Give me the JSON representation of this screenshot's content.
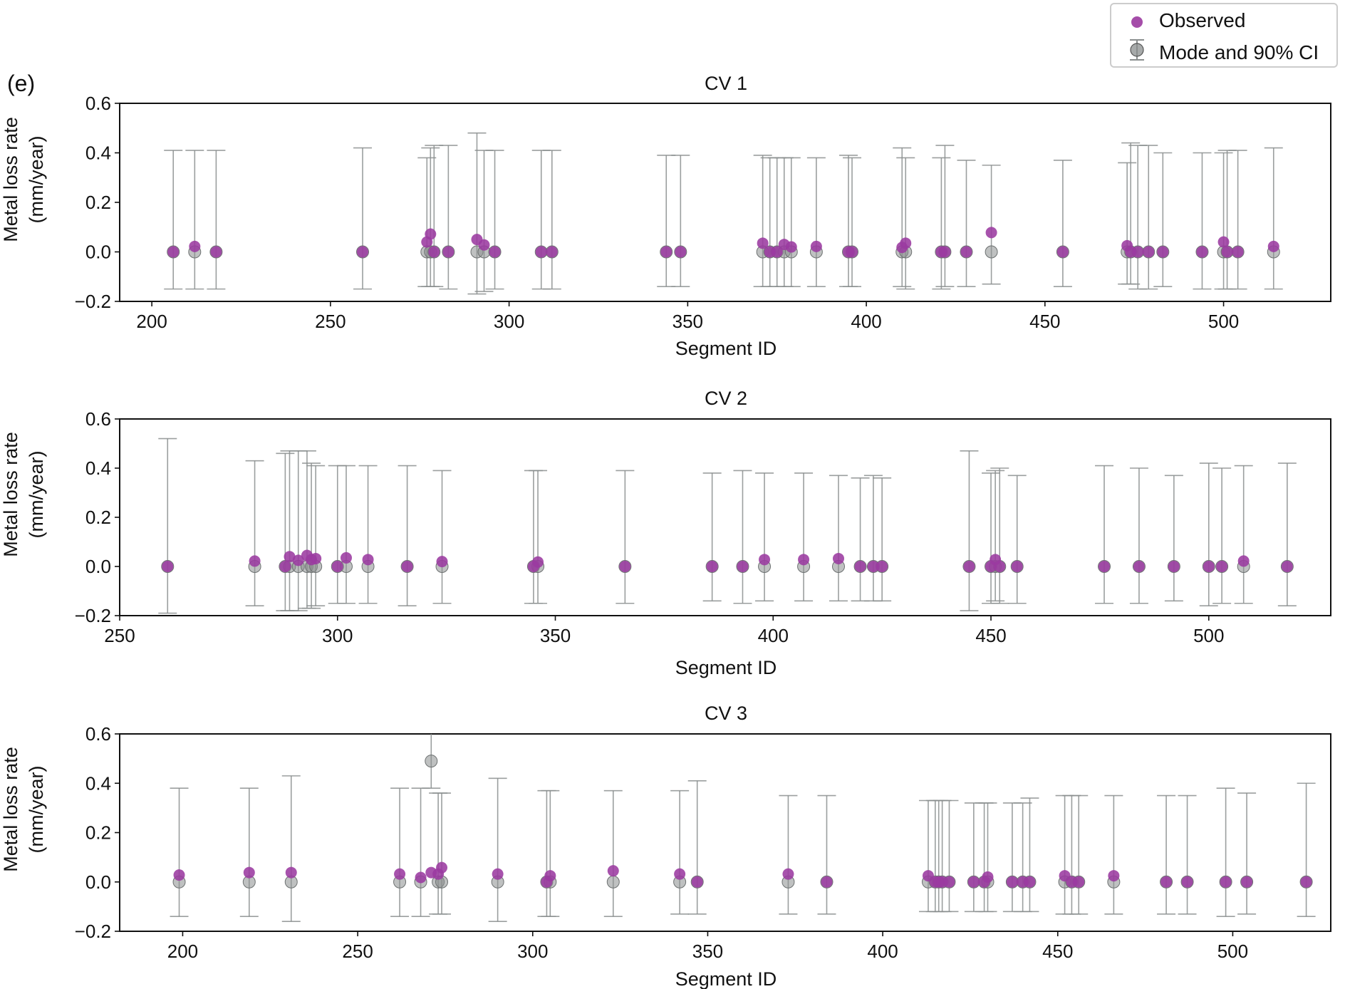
{
  "figure_label": "(e)",
  "legend": {
    "observed_label": "Observed",
    "mode_label": "Mode and 90% CI",
    "observed_color": "#9b3aa0",
    "mode_color": "#8a8e8e"
  },
  "chart_data": [
    {
      "type": "scatter",
      "title": "CV 1",
      "xlabel": "Segment ID",
      "ylabel_line1": "Metal loss rate",
      "ylabel_line2": "(mm/year)",
      "xlim": [
        191,
        530
      ],
      "ylim": [
        -0.2,
        0.6
      ],
      "xticks": [
        200,
        250,
        300,
        350,
        400,
        450,
        500
      ],
      "yticks": [
        -0.2,
        0.0,
        0.2,
        0.4,
        0.6
      ],
      "ytick_labels": [
        "−0.2",
        "0.0",
        "0.2",
        "0.4",
        "0.6"
      ],
      "series": [
        {
          "name": "Mode and 90% CI",
          "x": [
            206,
            212,
            218,
            259,
            277,
            278,
            279,
            283,
            291,
            293,
            296,
            309,
            312,
            344,
            348,
            371,
            373,
            375,
            377,
            379,
            386,
            395,
            396,
            410,
            411,
            421,
            422,
            428,
            435,
            455,
            473,
            474,
            476,
            479,
            483,
            494,
            500,
            501,
            504,
            514
          ],
          "y": [
            0,
            0,
            0,
            0,
            0,
            0,
            0,
            0,
            0,
            0,
            0,
            0,
            0,
            0,
            0,
            0,
            0,
            0,
            0,
            0,
            0,
            0,
            0,
            0,
            0,
            0,
            0,
            0,
            0,
            0,
            0,
            0,
            0,
            0,
            0,
            0,
            0,
            0,
            0,
            0
          ],
          "lower": [
            -0.15,
            -0.15,
            -0.15,
            -0.15,
            -0.14,
            -0.14,
            -0.14,
            -0.15,
            -0.17,
            -0.16,
            -0.15,
            -0.15,
            -0.15,
            -0.14,
            -0.14,
            -0.14,
            -0.14,
            -0.14,
            -0.14,
            -0.14,
            -0.14,
            -0.14,
            -0.14,
            -0.14,
            -0.15,
            -0.15,
            -0.14,
            -0.14,
            -0.13,
            -0.14,
            -0.13,
            -0.13,
            -0.15,
            -0.15,
            -0.14,
            -0.15,
            -0.15,
            -0.15,
            -0.15,
            -0.15
          ],
          "upper": [
            0.41,
            0.41,
            0.41,
            0.42,
            0.38,
            0.42,
            0.43,
            0.43,
            0.48,
            0.41,
            0.41,
            0.41,
            0.41,
            0.39,
            0.39,
            0.39,
            0.38,
            0.38,
            0.38,
            0.38,
            0.38,
            0.39,
            0.38,
            0.42,
            0.38,
            0.38,
            0.43,
            0.37,
            0.35,
            0.37,
            0.36,
            0.44,
            0.43,
            0.43,
            0.4,
            0.4,
            0.4,
            0.41,
            0.41,
            0.42
          ]
        },
        {
          "name": "Observed",
          "x": [
            206,
            212,
            218,
            259,
            277,
            278,
            279,
            283,
            291,
            293,
            296,
            309,
            312,
            344,
            348,
            371,
            373,
            375,
            377,
            379,
            386,
            395,
            396,
            410,
            411,
            421,
            422,
            428,
            435,
            455,
            473,
            474,
            476,
            479,
            483,
            494,
            500,
            501,
            504,
            514
          ],
          "y": [
            0.0,
            0.022,
            0.0,
            0.0,
            0.04,
            0.072,
            0.0,
            0.0,
            0.05,
            0.028,
            0.0,
            0.0,
            0.0,
            0.0,
            0.0,
            0.035,
            0.0,
            0.0,
            0.03,
            0.02,
            0.022,
            0.0,
            0.0,
            0.018,
            0.035,
            0.0,
            0.0,
            0.0,
            0.078,
            0.0,
            0.025,
            0.0,
            0.0,
            0.0,
            0.0,
            0.0,
            0.04,
            0.0,
            0.0,
            0.022
          ]
        }
      ]
    },
    {
      "type": "scatter",
      "title": "CV 2",
      "xlabel": "Segment ID",
      "ylabel_line1": "Metal loss rate",
      "ylabel_line2": "(mm/year)",
      "xlim": [
        250,
        528
      ],
      "ylim": [
        -0.2,
        0.6
      ],
      "xticks": [
        250,
        300,
        350,
        400,
        450,
        500
      ],
      "yticks": [
        -0.2,
        0.0,
        0.2,
        0.4,
        0.6
      ],
      "ytick_labels": [
        "−0.2",
        "0.0",
        "0.2",
        "0.4",
        "0.6"
      ],
      "series": [
        {
          "name": "Mode and 90% CI",
          "x": [
            261,
            281,
            288,
            289,
            291,
            293,
            294,
            295,
            300,
            302,
            307,
            316,
            324,
            345,
            346,
            366,
            386,
            393,
            398,
            407,
            415,
            420,
            423,
            425,
            445,
            450,
            451,
            452,
            456,
            476,
            484,
            492,
            500,
            503,
            508,
            518
          ],
          "y": [
            0,
            0,
            0,
            0,
            0,
            0,
            0,
            0,
            0,
            0,
            0,
            0,
            0,
            0,
            0,
            0,
            0,
            0,
            0,
            0,
            0,
            0,
            0,
            0,
            0,
            0,
            0,
            0,
            0,
            0,
            0,
            0,
            0,
            0,
            0,
            0
          ],
          "lower": [
            -0.19,
            -0.16,
            -0.18,
            -0.18,
            -0.18,
            -0.17,
            -0.17,
            -0.16,
            -0.15,
            -0.15,
            -0.15,
            -0.16,
            -0.15,
            -0.15,
            -0.15,
            -0.15,
            -0.14,
            -0.15,
            -0.14,
            -0.14,
            -0.14,
            -0.14,
            -0.14,
            -0.14,
            -0.18,
            -0.15,
            -0.14,
            -0.15,
            -0.15,
            -0.15,
            -0.15,
            -0.14,
            -0.16,
            -0.15,
            -0.15,
            -0.16
          ],
          "upper": [
            0.52,
            0.43,
            0.46,
            0.47,
            0.47,
            0.47,
            0.42,
            0.41,
            0.41,
            0.41,
            0.41,
            0.41,
            0.39,
            0.39,
            0.39,
            0.39,
            0.38,
            0.39,
            0.38,
            0.38,
            0.37,
            0.36,
            0.37,
            0.36,
            0.47,
            0.38,
            0.39,
            0.4,
            0.37,
            0.41,
            0.4,
            0.37,
            0.42,
            0.4,
            0.41,
            0.42
          ]
        },
        {
          "name": "Observed",
          "x": [
            261,
            281,
            288,
            289,
            291,
            293,
            294,
            295,
            300,
            302,
            307,
            316,
            324,
            345,
            346,
            366,
            386,
            393,
            398,
            407,
            415,
            420,
            423,
            425,
            445,
            450,
            451,
            452,
            456,
            476,
            484,
            492,
            500,
            503,
            508,
            518
          ],
          "y": [
            0.0,
            0.022,
            0.0,
            0.04,
            0.025,
            0.045,
            0.028,
            0.032,
            0.0,
            0.035,
            0.028,
            0.0,
            0.02,
            0.0,
            0.018,
            0.0,
            0.0,
            0.0,
            0.028,
            0.028,
            0.032,
            0.0,
            0.0,
            0.0,
            0.0,
            0.0,
            0.028,
            0.0,
            0.0,
            0.0,
            0.0,
            0.0,
            0.0,
            0.0,
            0.022,
            0.0
          ]
        }
      ]
    },
    {
      "type": "scatter",
      "title": "CV 3",
      "xlabel": "Segment ID",
      "ylabel_line1": "Metal loss rate",
      "ylabel_line2": "(mm/year)",
      "xlim": [
        182,
        528
      ],
      "ylim": [
        -0.2,
        0.6
      ],
      "xticks": [
        200,
        250,
        300,
        350,
        400,
        450,
        500
      ],
      "yticks": [
        -0.2,
        0.0,
        0.2,
        0.4,
        0.6
      ],
      "ytick_labels": [
        "−0.2",
        "0.0",
        "0.2",
        "0.4",
        "0.6"
      ],
      "series": [
        {
          "name": "Mode and 90% CI",
          "x": [
            199,
            219,
            231,
            262,
            268,
            271,
            273,
            274,
            290,
            304,
            305,
            323,
            342,
            347,
            373,
            384,
            413,
            415,
            416,
            417,
            419,
            426,
            429,
            430,
            437,
            440,
            442,
            452,
            454,
            456,
            466,
            481,
            487,
            498,
            504,
            521
          ],
          "y": [
            0,
            0,
            0,
            0,
            0,
            0.49,
            0,
            0,
            0,
            0,
            0,
            0,
            0,
            0,
            0,
            0,
            0,
            0,
            0,
            0,
            0,
            0,
            0,
            0,
            0,
            0,
            0,
            0,
            0,
            0,
            0,
            0,
            0,
            0,
            0,
            0
          ],
          "lower": [
            -0.14,
            -0.14,
            -0.16,
            -0.14,
            -0.14,
            0.38,
            -0.13,
            -0.13,
            -0.16,
            -0.14,
            -0.14,
            -0.14,
            -0.13,
            -0.13,
            -0.13,
            -0.13,
            -0.12,
            -0.12,
            -0.12,
            -0.12,
            -0.12,
            -0.12,
            -0.12,
            -0.12,
            -0.12,
            -0.12,
            -0.12,
            -0.13,
            -0.13,
            -0.13,
            -0.13,
            -0.13,
            -0.13,
            -0.14,
            -0.13,
            -0.14
          ],
          "upper": [
            0.38,
            0.38,
            0.43,
            0.38,
            0.38,
            0.6,
            0.36,
            0.36,
            0.42,
            0.37,
            0.37,
            0.37,
            0.37,
            0.41,
            0.35,
            0.35,
            0.33,
            0.33,
            0.33,
            0.33,
            0.33,
            0.32,
            0.32,
            0.32,
            0.32,
            0.32,
            0.34,
            0.35,
            0.35,
            0.35,
            0.35,
            0.35,
            0.35,
            0.38,
            0.36,
            0.4
          ]
        },
        {
          "name": "Observed",
          "x": [
            199,
            219,
            231,
            262,
            268,
            271,
            273,
            274,
            290,
            304,
            305,
            323,
            342,
            347,
            373,
            384,
            413,
            415,
            416,
            417,
            419,
            426,
            429,
            430,
            437,
            440,
            442,
            452,
            454,
            456,
            466,
            481,
            487,
            498,
            504,
            521
          ],
          "y": [
            0.028,
            0.038,
            0.038,
            0.032,
            0.018,
            0.038,
            0.032,
            0.058,
            0.032,
            0.0,
            0.025,
            0.045,
            0.032,
            0.0,
            0.032,
            0.0,
            0.025,
            0.0,
            0.0,
            0.0,
            0.0,
            0.0,
            0.0,
            0.02,
            0.0,
            0.0,
            0.0,
            0.025,
            0.0,
            0.0,
            0.025,
            0.0,
            0.0,
            0.0,
            0.0,
            0.0
          ]
        }
      ]
    }
  ]
}
